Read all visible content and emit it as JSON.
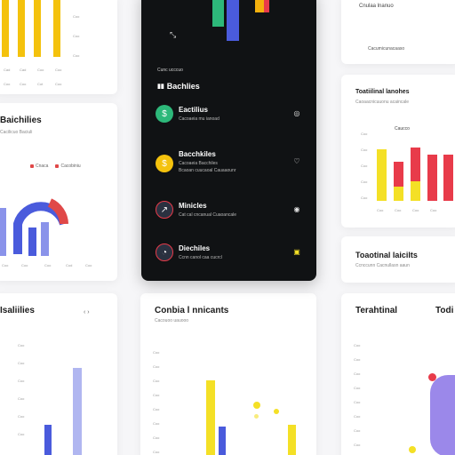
{
  "dark_panel": {
    "small_label": "Cunc ucccuo",
    "header": "Bachlies",
    "rows": [
      {
        "name": "Eactilius",
        "desc": "Cacoaeia mu ianoad",
        "icon": "dollar-icon",
        "icon_color": "#2db87a",
        "action": "◎"
      },
      {
        "name": "Bacchkiles",
        "desc": "Cacoaeia Bacchiles",
        "desc2": "Bcaoan cuucaoal Cauaaounr",
        "icon": "coin-icon",
        "icon_color": "#f4c20d",
        "action": "♡"
      },
      {
        "name": "Minicles",
        "desc": "Cat cal cncanual Cuaoancale",
        "icon": "chart-icon",
        "icon_color": "#2a3140",
        "action": "◉"
      },
      {
        "name": "Diechiles",
        "desc": "Ccnn canol caa cucrcl",
        "icon": "pie-icon",
        "icon_color": "#2a3140",
        "action": "▣"
      }
    ]
  },
  "card_top_left": {
    "ticks": [
      "Coo",
      "Coo",
      "Coo"
    ],
    "xticks": [
      "Cad",
      "Cad",
      "Coo",
      "Coo"
    ],
    "xticks2": [
      "Coo",
      "Coo",
      "Cot",
      "Coo"
    ],
    "bars": [
      {
        "value": 0.9,
        "color": "#f4c20d"
      },
      {
        "value": 0.8,
        "color": "#f4c20d"
      },
      {
        "value": 0.85,
        "color": "#f4c20d"
      },
      {
        "value": 0.8,
        "color": "#f4c20d"
      }
    ]
  },
  "card_mid_left": {
    "title": "Baichilies",
    "subtitle": "Cacilicuo Baciuli",
    "legend": [
      "Cnaca",
      "Cacobiniu"
    ],
    "xticks": [
      "Coo",
      "Coo",
      "Coo",
      "Cod",
      "Coo"
    ]
  },
  "card_top_right": {
    "label": "Cnulaa lnanuo",
    "sub": "Cacumicunacaaso"
  },
  "card_right": {
    "title": "Toatiilinal lanohes",
    "subtitle": "Caoaacnicuuonu acaincale",
    "chart_label": "Caucco",
    "yticks": [
      "Coo",
      "Coo",
      "Coo",
      "Coo",
      "Coo"
    ],
    "xticks": [
      "Coo",
      "Coo",
      "Coo",
      "Coo"
    ]
  },
  "card_right_low": {
    "title": "Toaotinal laicilts",
    "subtitle": "Ccnccunn Cacnullasn aaun"
  },
  "card_bottom_left": {
    "title": "Isaliilies",
    "pager": "‹ ›",
    "yticks": [
      "Coo",
      "Coo",
      "Coo",
      "Coo",
      "Coo",
      "Coo"
    ]
  },
  "card_bottom_mid": {
    "title": "Conbia l nnicants",
    "subtitle": "Cacouoo uauooo",
    "yticks": [
      "Coo",
      "Coo",
      "Coo",
      "Coo",
      "Coo",
      "Coo",
      "Coo",
      "Coo"
    ]
  },
  "card_bottom_right": {
    "title": "Terahtinal",
    "title2": "Todi",
    "yticks": [
      "Coo",
      "Coo",
      "Coo",
      "Coo",
      "Coo",
      "Coo",
      "Coo",
      "Coo"
    ]
  }
}
